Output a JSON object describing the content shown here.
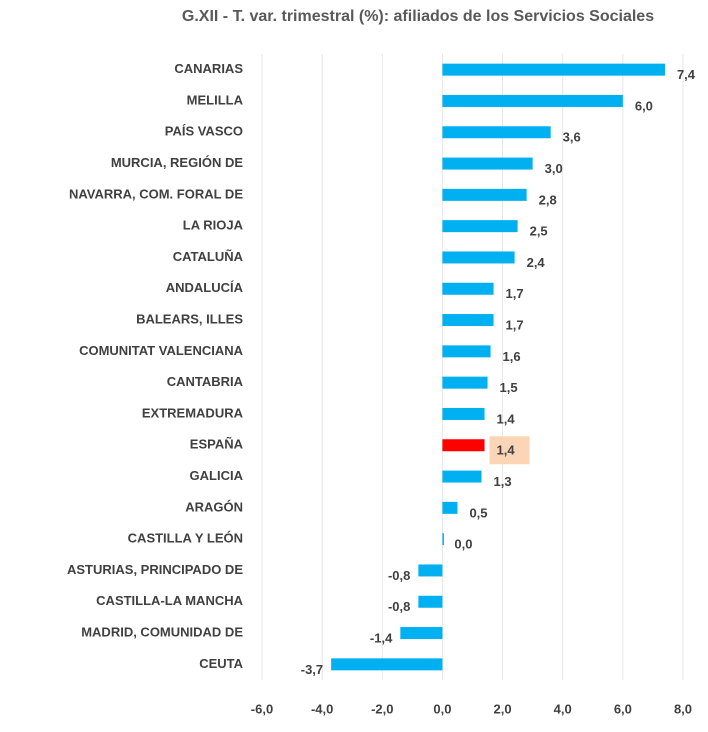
{
  "chart_data": {
    "type": "hbar",
    "title": "G.XII - T. var. trimestral (%): afiliados de los Servicios Sociales",
    "categories": [
      "CANARIAS",
      "MELILLA",
      "PAÍS VASCO",
      "MURCIA, REGIÓN DE",
      "NAVARRA, COM. FORAL DE",
      "LA RIOJA",
      "CATALUÑA",
      "ANDALUCÍA",
      "BALEARS, ILLES",
      "COMUNITAT VALENCIANA",
      "CANTABRIA",
      "EXTREMADURA",
      "ESPAÑA",
      "GALICIA",
      "ARAGÓN",
      "CASTILLA Y LEÓN",
      "ASTURIAS, PRINCIPADO DE",
      "CASTILLA-LA MANCHA",
      "MADRID, COMUNIDAD DE",
      "CEUTA"
    ],
    "values": [
      7.4,
      6.0,
      3.6,
      3.0,
      2.8,
      2.5,
      2.4,
      1.7,
      1.7,
      1.6,
      1.5,
      1.4,
      1.4,
      1.3,
      0.5,
      0.0,
      -0.8,
      -0.8,
      -1.4,
      -3.7
    ],
    "value_labels": [
      "7,4",
      "6,0",
      "3,6",
      "3,0",
      "2,8",
      "2,5",
      "2,4",
      "1,7",
      "1,7",
      "1,6",
      "1,5",
      "1,4",
      "1,4",
      "1,3",
      "0,5",
      "0,0",
      "-0,8",
      "-0,8",
      "-1,4",
      "-3,7"
    ],
    "colors": [
      "#00b0f0",
      "#00b0f0",
      "#00b0f0",
      "#00b0f0",
      "#00b0f0",
      "#00b0f0",
      "#00b0f0",
      "#00b0f0",
      "#00b0f0",
      "#00b0f0",
      "#00b0f0",
      "#00b0f0",
      "#ff0000",
      "#00b0f0",
      "#00b0f0",
      "#00b0f0",
      "#00b0f0",
      "#00b0f0",
      "#00b0f0",
      "#00b0f0"
    ],
    "label_backgrounds": [
      null,
      null,
      null,
      null,
      null,
      null,
      null,
      null,
      null,
      null,
      null,
      null,
      "#fbd5b5",
      null,
      null,
      null,
      null,
      null,
      null,
      null
    ],
    "xlim": [
      -6,
      8
    ],
    "xticks": [
      {
        "value": -6,
        "label": "-6,0"
      },
      {
        "value": -4,
        "label": "-4,0"
      },
      {
        "value": -2,
        "label": "-2,0"
      },
      {
        "value": 0,
        "label": "0,0"
      },
      {
        "value": 2,
        "label": "2,0"
      },
      {
        "value": 4,
        "label": "4,0"
      },
      {
        "value": 6,
        "label": "6,0"
      },
      {
        "value": 8,
        "label": "8,0"
      }
    ],
    "grid": true
  }
}
